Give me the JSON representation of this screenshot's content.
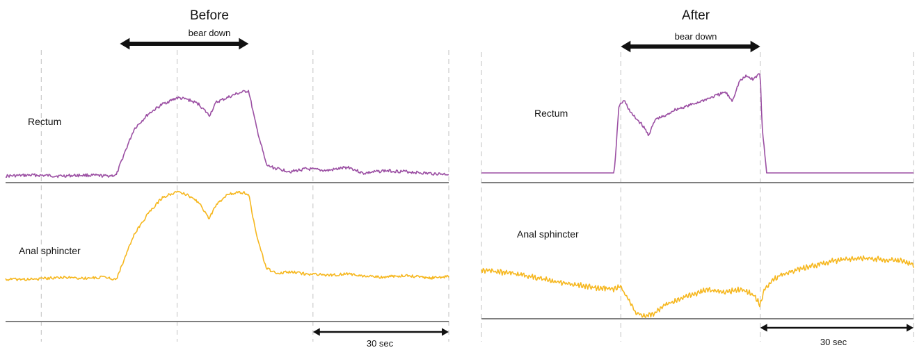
{
  "chart_data": [
    {
      "type": "line",
      "title": "Before",
      "annotation": "bear down",
      "scale_label": "30 sec",
      "colors": {
        "rectum": "#9b4fa3",
        "sphincter": "#f6b71e",
        "baseline": "#7f7f7f",
        "grid": "#cccccc",
        "arrow": "#111111"
      },
      "series": [
        {
          "name": "Rectum",
          "x": [
            0,
            8,
            15,
            22,
            28,
            31,
            33,
            36,
            40,
            44,
            48,
            51,
            54,
            57,
            59,
            62,
            65,
            68,
            70,
            73,
            76,
            80,
            84,
            90,
            96,
            100,
            106,
            112,
            118,
            124
          ],
          "values": [
            0.02,
            0.03,
            0.02,
            0.03,
            0.02,
            0.03,
            0.25,
            0.55,
            0.72,
            0.83,
            0.9,
            0.88,
            0.83,
            0.7,
            0.85,
            0.9,
            0.95,
            0.98,
            0.6,
            0.14,
            0.1,
            0.07,
            0.1,
            0.08,
            0.12,
            0.05,
            0.08,
            0.07,
            0.05,
            0.04
          ]
        },
        {
          "name": "Anal sphincter",
          "x": [
            0,
            8,
            15,
            22,
            28,
            31,
            33,
            36,
            40,
            44,
            48,
            51,
            54,
            57,
            59,
            62,
            65,
            68,
            70,
            73,
            76,
            80,
            84,
            90,
            96,
            100,
            106,
            112,
            118,
            124
          ],
          "values": [
            0.18,
            0.18,
            0.2,
            0.19,
            0.2,
            0.18,
            0.35,
            0.6,
            0.8,
            0.95,
            1.0,
            0.97,
            0.9,
            0.75,
            0.88,
            0.97,
            1.0,
            0.98,
            0.62,
            0.28,
            0.24,
            0.25,
            0.23,
            0.22,
            0.23,
            0.21,
            0.2,
            0.22,
            0.19,
            0.21
          ]
        }
      ],
      "bear_down": [
        32,
        68
      ],
      "scale_bar": [
        86,
        124
      ],
      "gridlines": [
        10,
        48,
        86,
        124
      ]
    },
    {
      "type": "line",
      "title": "After",
      "annotation": "bear down",
      "scale_label": "30 sec",
      "colors": {
        "rectum": "#9b4fa3",
        "sphincter": "#f6b71e",
        "baseline": "#7f7f7f",
        "grid": "#cccccc",
        "arrow": "#111111"
      },
      "series": [
        {
          "name": "Rectum",
          "x": [
            0,
            10,
            20,
            30,
            38,
            39.5,
            41,
            43,
            46,
            48,
            50,
            53,
            55,
            60,
            65,
            70,
            72,
            74,
            76,
            78,
            80,
            80.5,
            82,
            90,
            100,
            110,
            120,
            124
          ],
          "values": [
            0.0,
            0.0,
            0.0,
            0.0,
            0.0,
            0.68,
            0.72,
            0.6,
            0.5,
            0.4,
            0.55,
            0.58,
            0.63,
            0.68,
            0.74,
            0.8,
            0.72,
            0.9,
            0.95,
            0.92,
            0.98,
            0.5,
            0.0,
            0.0,
            0.0,
            0.0,
            0.0,
            0.0
          ]
        },
        {
          "name": "Anal sphincter",
          "x": [
            0,
            8,
            16,
            24,
            32,
            38,
            40,
            42,
            44,
            47,
            50,
            52,
            55,
            60,
            65,
            70,
            73,
            75,
            78,
            80,
            81,
            83,
            86,
            90,
            95,
            100,
            105,
            110,
            115,
            120,
            124
          ],
          "values": [
            0.72,
            0.68,
            0.6,
            0.52,
            0.46,
            0.44,
            0.46,
            0.3,
            0.1,
            0.02,
            0.08,
            0.18,
            0.25,
            0.35,
            0.42,
            0.38,
            0.42,
            0.43,
            0.35,
            0.2,
            0.4,
            0.55,
            0.65,
            0.72,
            0.78,
            0.85,
            0.88,
            0.9,
            0.88,
            0.86,
            0.8
          ]
        }
      ],
      "bear_down": [
        40,
        80
      ],
      "scale_bar": [
        80,
        124
      ],
      "gridlines": [
        0,
        40,
        80,
        124
      ]
    }
  ]
}
